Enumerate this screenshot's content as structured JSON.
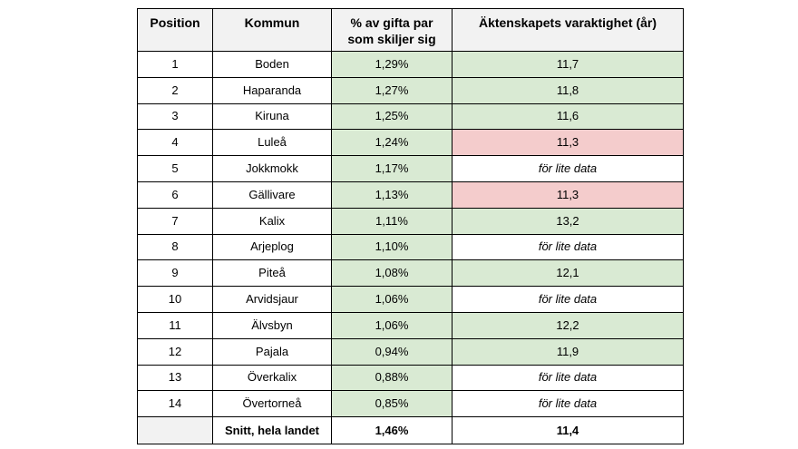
{
  "table": {
    "headers": {
      "position": "Position",
      "kommun": "Kommun",
      "percent_line1": "% av gifta par",
      "percent_line2": "som skiljer sig",
      "duration": "Äktenskapets varaktighet (år)"
    },
    "rows": [
      {
        "position": "1",
        "kommun": "Boden",
        "percent": "1,29%",
        "duration": "11,7",
        "duration_status": "green"
      },
      {
        "position": "2",
        "kommun": "Haparanda",
        "percent": "1,27%",
        "duration": "11,8",
        "duration_status": "green"
      },
      {
        "position": "3",
        "kommun": "Kiruna",
        "percent": "1,25%",
        "duration": "11,6",
        "duration_status": "green"
      },
      {
        "position": "4",
        "kommun": "Luleå",
        "percent": "1,24%",
        "duration": "11,3",
        "duration_status": "red"
      },
      {
        "position": "5",
        "kommun": "Jokkmokk",
        "percent": "1,17%",
        "duration": "för lite data",
        "duration_status": "none"
      },
      {
        "position": "6",
        "kommun": "Gällivare",
        "percent": "1,13%",
        "duration": "11,3",
        "duration_status": "red"
      },
      {
        "position": "7",
        "kommun": "Kalix",
        "percent": "1,11%",
        "duration": "13,2",
        "duration_status": "green"
      },
      {
        "position": "8",
        "kommun": "Arjeplog",
        "percent": "1,10%",
        "duration": "för lite data",
        "duration_status": "none"
      },
      {
        "position": "9",
        "kommun": "Piteå",
        "percent": "1,08%",
        "duration": "12,1",
        "duration_status": "green"
      },
      {
        "position": "10",
        "kommun": "Arvidsjaur",
        "percent": "1,06%",
        "duration": "för lite data",
        "duration_status": "none"
      },
      {
        "position": "11",
        "kommun": "Älvsbyn",
        "percent": "1,06%",
        "duration": "12,2",
        "duration_status": "green"
      },
      {
        "position": "12",
        "kommun": "Pajala",
        "percent": "0,94%",
        "duration": "11,9",
        "duration_status": "green"
      },
      {
        "position": "13",
        "kommun": "Överkalix",
        "percent": "0,88%",
        "duration": "för lite data",
        "duration_status": "none"
      },
      {
        "position": "14",
        "kommun": "Övertorneå",
        "percent": "0,85%",
        "duration": "för lite data",
        "duration_status": "none"
      }
    ],
    "footer": {
      "position": "",
      "kommun": "Snitt, hela landet",
      "percent": "1,46%",
      "duration": "11,4"
    },
    "colors": {
      "green": "#d9ead3",
      "red": "#f4cccc",
      "header_bg": "#f2f2f2"
    }
  }
}
